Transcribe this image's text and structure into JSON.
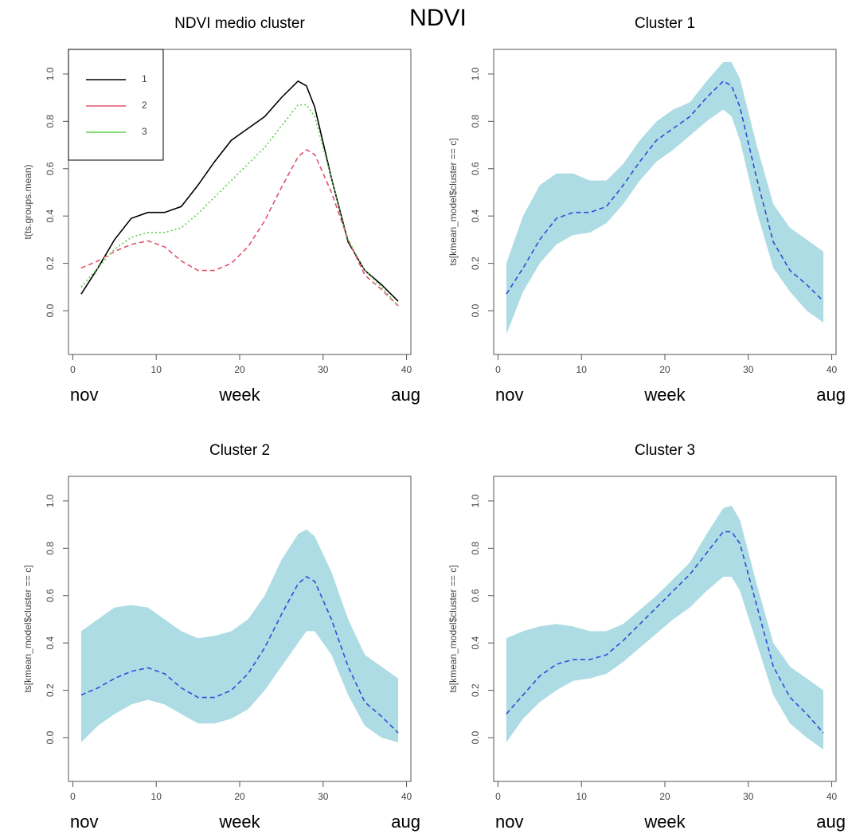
{
  "title": "NDVI",
  "chart_data": [
    {
      "type": "line",
      "title": "NDVI medio cluster",
      "ylabel": "t(ts.groups.mean)",
      "xlabel": "week",
      "annotations": [
        "nov",
        "aug"
      ],
      "x": [
        1,
        3,
        5,
        7,
        9,
        11,
        13,
        15,
        17,
        19,
        21,
        23,
        25,
        27,
        28,
        29,
        31,
        33,
        35,
        37,
        39
      ],
      "xlim": [
        -0.52,
        40.52
      ],
      "ylim": [
        -0.185,
        1.104
      ],
      "xticks": [
        0,
        10,
        20,
        30,
        40
      ],
      "yticks": [
        {
          "value": 0,
          "label": "0.0"
        },
        0.2,
        0.4,
        0.6,
        0.8,
        {
          "value": 1,
          "label": "1.0"
        }
      ],
      "legend": "top-left",
      "series": [
        {
          "name": "1",
          "color": "#000000",
          "dash": "solid",
          "values": [
            0.07,
            0.18,
            0.3,
            0.39,
            0.415,
            0.415,
            0.44,
            0.53,
            0.63,
            0.72,
            0.77,
            0.82,
            0.9,
            0.97,
            0.95,
            0.86,
            0.56,
            0.29,
            0.17,
            0.11,
            0.04
          ]
        },
        {
          "name": "2",
          "color": "#df536b",
          "dash": "dashed",
          "values": [
            0.18,
            0.21,
            0.25,
            0.28,
            0.295,
            0.27,
            0.21,
            0.17,
            0.17,
            0.2,
            0.27,
            0.38,
            0.52,
            0.65,
            0.68,
            0.66,
            0.5,
            0.3,
            0.15,
            0.09,
            0.02
          ]
        },
        {
          "name": "3",
          "color": "#61d04f",
          "dash": "dotted",
          "values": [
            0.1,
            0.18,
            0.26,
            0.31,
            0.33,
            0.33,
            0.35,
            0.41,
            0.48,
            0.55,
            0.62,
            0.69,
            0.78,
            0.87,
            0.87,
            0.82,
            0.56,
            0.3,
            0.17,
            0.1,
            0.02
          ]
        }
      ]
    },
    {
      "type": "line",
      "title": "Cluster 1",
      "ylabel": "ts[kmean_model$cluster == c]",
      "xlabel": "week",
      "annotations": [
        "nov",
        "aug"
      ],
      "x": [
        1,
        3,
        5,
        7,
        9,
        11,
        13,
        15,
        17,
        19,
        21,
        23,
        25,
        27,
        28,
        29,
        31,
        33,
        35,
        37,
        39
      ],
      "xlim": [
        -0.52,
        40.52
      ],
      "ylim": [
        -0.185,
        1.104
      ],
      "xticks": [
        0,
        10,
        20,
        30,
        40
      ],
      "yticks": [
        {
          "value": 0,
          "label": "0.0"
        },
        0.2,
        0.4,
        0.6,
        0.8,
        {
          "value": 1,
          "label": "1.0"
        }
      ],
      "band": {
        "color": "#9fd6df",
        "upper": [
          0.2,
          0.4,
          0.53,
          0.58,
          0.58,
          0.55,
          0.55,
          0.62,
          0.72,
          0.8,
          0.85,
          0.88,
          0.97,
          1.05,
          1.05,
          0.98,
          0.7,
          0.45,
          0.35,
          0.3,
          0.25
        ],
        "lower": [
          -0.1,
          0.08,
          0.2,
          0.28,
          0.32,
          0.33,
          0.37,
          0.45,
          0.55,
          0.63,
          0.68,
          0.74,
          0.8,
          0.85,
          0.82,
          0.72,
          0.42,
          0.18,
          0.08,
          0.0,
          -0.05
        ]
      },
      "series": [
        {
          "color": "#2d4fd8",
          "dash": "dashed",
          "values": [
            0.07,
            0.18,
            0.3,
            0.39,
            0.415,
            0.415,
            0.44,
            0.53,
            0.63,
            0.72,
            0.77,
            0.82,
            0.9,
            0.97,
            0.95,
            0.86,
            0.56,
            0.29,
            0.17,
            0.11,
            0.04
          ]
        }
      ]
    },
    {
      "type": "line",
      "title": "Cluster 2",
      "ylabel": "ts[kmean_model$cluster == c]",
      "xlabel": "week",
      "annotations": [
        "nov",
        "aug"
      ],
      "x": [
        1,
        3,
        5,
        7,
        9,
        11,
        13,
        15,
        17,
        19,
        21,
        23,
        25,
        27,
        28,
        29,
        31,
        33,
        35,
        37,
        39
      ],
      "xlim": [
        -0.52,
        40.52
      ],
      "ylim": [
        -0.185,
        1.104
      ],
      "xticks": [
        0,
        10,
        20,
        30,
        40
      ],
      "yticks": [
        {
          "value": 0,
          "label": "0.0"
        },
        0.2,
        0.4,
        0.6,
        0.8,
        {
          "value": 1,
          "label": "1.0"
        }
      ],
      "band": {
        "color": "#9fd6df",
        "upper": [
          0.45,
          0.5,
          0.55,
          0.56,
          0.55,
          0.5,
          0.45,
          0.42,
          0.43,
          0.45,
          0.5,
          0.6,
          0.75,
          0.86,
          0.88,
          0.85,
          0.7,
          0.5,
          0.35,
          0.3,
          0.25
        ],
        "lower": [
          -0.02,
          0.05,
          0.1,
          0.14,
          0.16,
          0.14,
          0.1,
          0.06,
          0.06,
          0.08,
          0.12,
          0.2,
          0.3,
          0.4,
          0.45,
          0.45,
          0.35,
          0.18,
          0.05,
          0.0,
          -0.02
        ]
      },
      "series": [
        {
          "color": "#2d4fd8",
          "dash": "dashed",
          "values": [
            0.18,
            0.21,
            0.25,
            0.28,
            0.295,
            0.27,
            0.21,
            0.17,
            0.17,
            0.2,
            0.27,
            0.38,
            0.52,
            0.65,
            0.68,
            0.66,
            0.5,
            0.3,
            0.15,
            0.09,
            0.02
          ]
        }
      ]
    },
    {
      "type": "line",
      "title": "Cluster 3",
      "ylabel": "ts[kmean_model$cluster == c]",
      "xlabel": "week",
      "annotations": [
        "nov",
        "aug"
      ],
      "x": [
        1,
        3,
        5,
        7,
        9,
        11,
        13,
        15,
        17,
        19,
        21,
        23,
        25,
        27,
        28,
        29,
        31,
        33,
        35,
        37,
        39
      ],
      "xlim": [
        -0.52,
        40.52
      ],
      "ylim": [
        -0.185,
        1.104
      ],
      "xticks": [
        0,
        10,
        20,
        30,
        40
      ],
      "yticks": [
        {
          "value": 0,
          "label": "0.0"
        },
        0.2,
        0.4,
        0.6,
        0.8,
        {
          "value": 1,
          "label": "1.0"
        }
      ],
      "band": {
        "color": "#9fd6df",
        "upper": [
          0.42,
          0.45,
          0.47,
          0.48,
          0.47,
          0.45,
          0.45,
          0.48,
          0.54,
          0.6,
          0.67,
          0.74,
          0.86,
          0.97,
          0.98,
          0.92,
          0.65,
          0.4,
          0.3,
          0.25,
          0.2
        ],
        "lower": [
          -0.02,
          0.08,
          0.15,
          0.2,
          0.24,
          0.25,
          0.27,
          0.32,
          0.38,
          0.44,
          0.5,
          0.55,
          0.62,
          0.68,
          0.68,
          0.62,
          0.4,
          0.18,
          0.06,
          0.0,
          -0.05
        ]
      },
      "series": [
        {
          "color": "#2d4fd8",
          "dash": "dashed",
          "values": [
            0.1,
            0.18,
            0.26,
            0.31,
            0.33,
            0.33,
            0.35,
            0.41,
            0.48,
            0.55,
            0.62,
            0.69,
            0.78,
            0.87,
            0.87,
            0.82,
            0.56,
            0.3,
            0.17,
            0.1,
            0.02
          ]
        }
      ]
    }
  ]
}
